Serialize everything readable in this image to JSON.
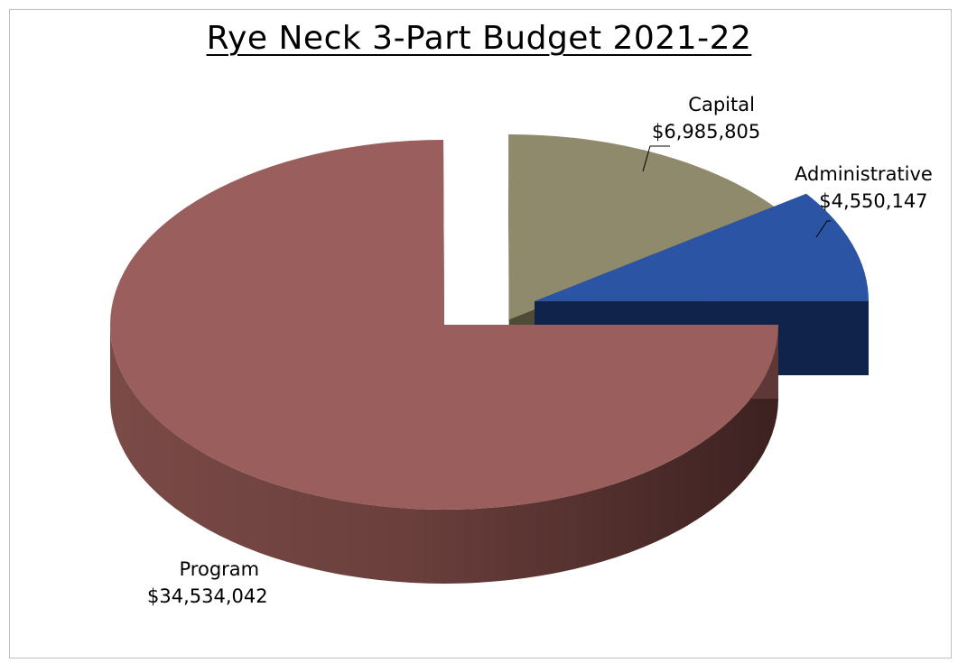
{
  "chart_data": {
    "type": "pie",
    "title": "Rye Neck 3-Part Budget 2021-22",
    "slices": [
      {
        "name": "Program",
        "value": 34534042,
        "label_value": "$34,534,042",
        "color": "#9a5f5c",
        "side_color": "#5e3836",
        "exploded": false
      },
      {
        "name": "Capital",
        "value": 6985805,
        "label_value": "$6,985,805",
        "color": "#8f8a6b",
        "side_color": "#4e4b36",
        "exploded": true
      },
      {
        "name": "Administrative",
        "value": 4550147,
        "label_value": "$4,550,147",
        "color": "#2b55a4",
        "side_color": "#10234a",
        "exploded": true
      }
    ],
    "legend": "none",
    "style": "3d-exploded"
  }
}
